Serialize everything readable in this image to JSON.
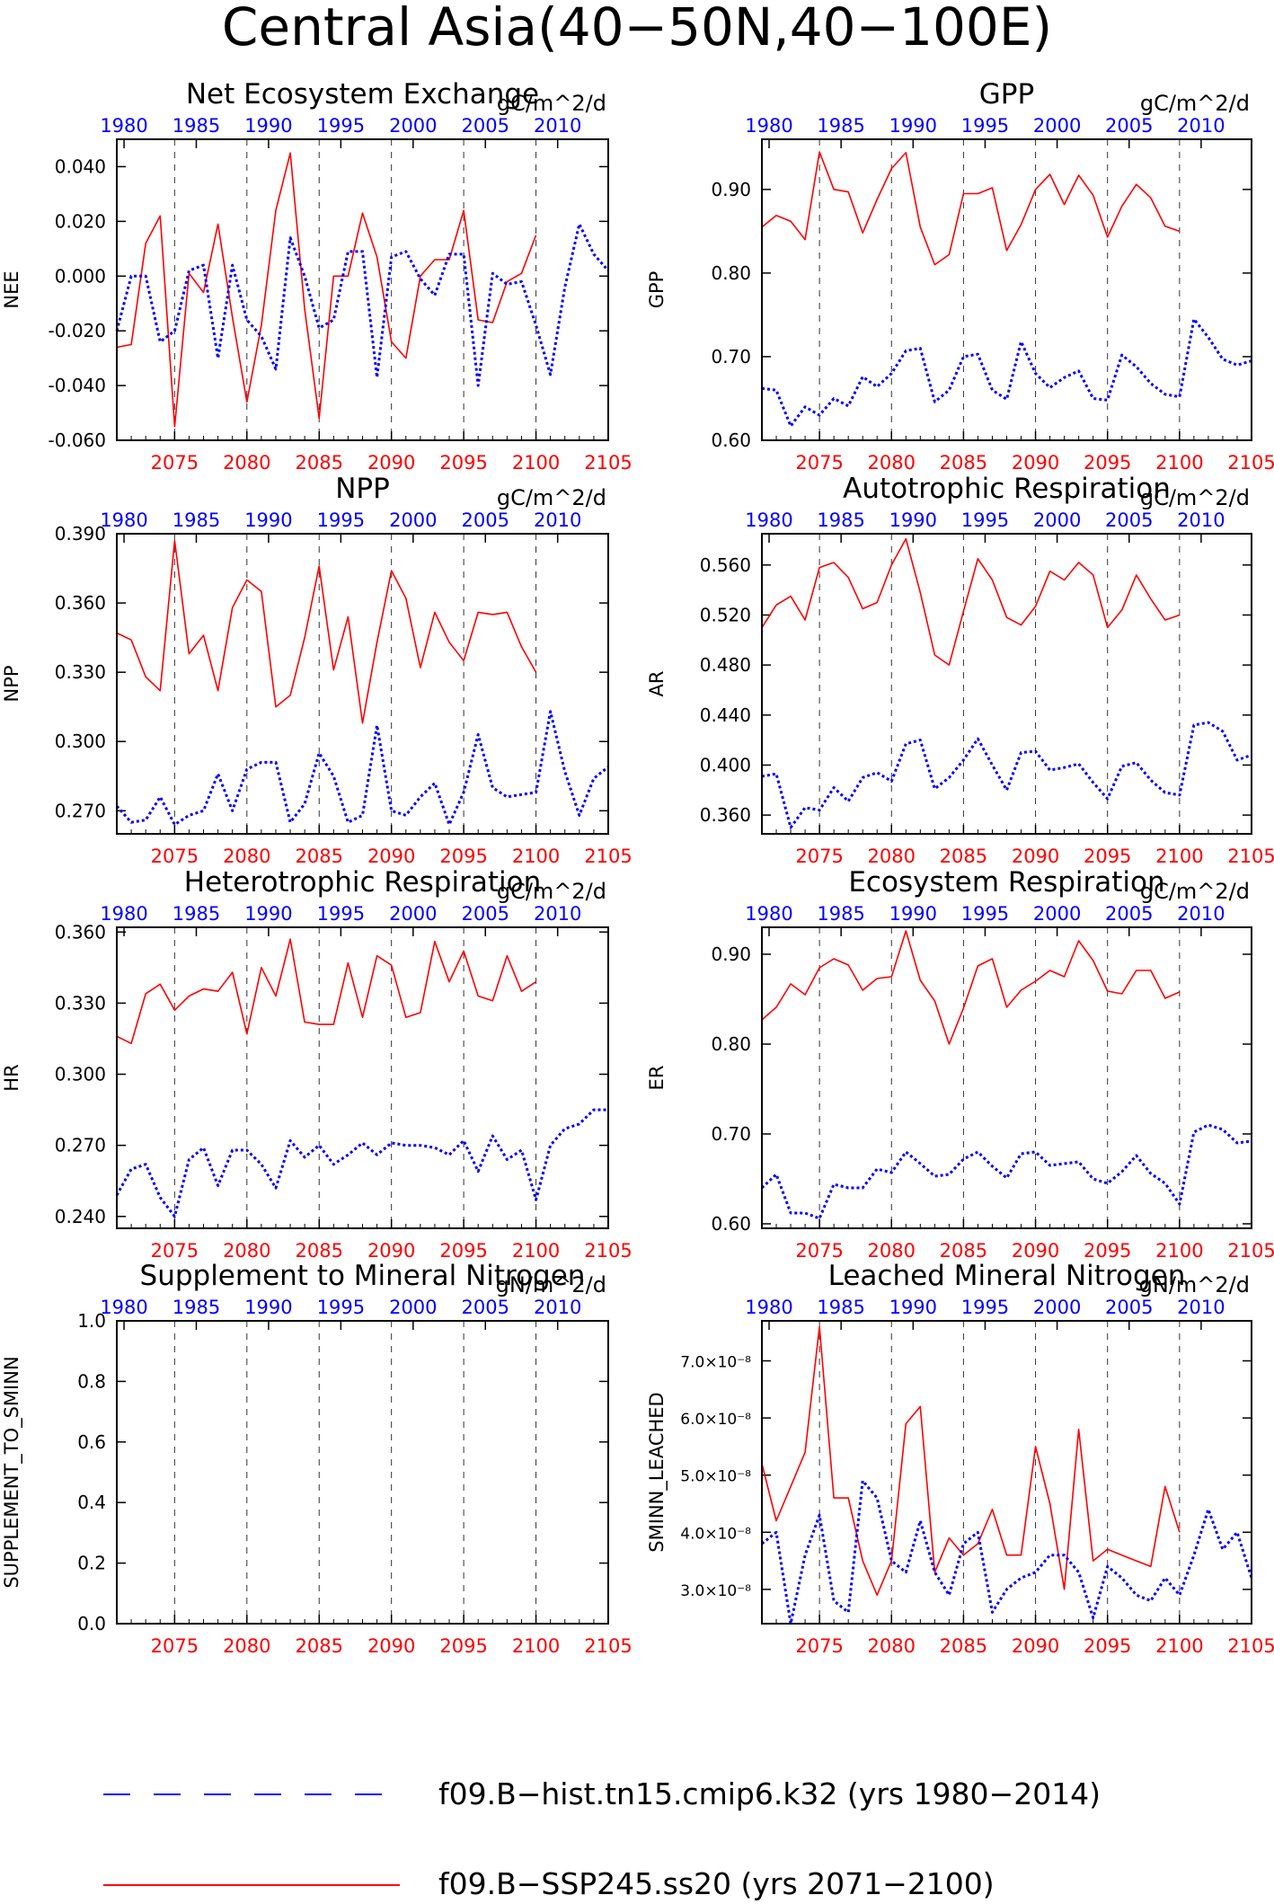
{
  "page": {
    "title": "Central Asia(40−50N,40−100E)",
    "colors": {
      "ssp": "#ff0000",
      "hist": "#0000ff",
      "frame": "#000000",
      "grid": "#000000"
    }
  },
  "legend": {
    "items": [
      {
        "label": "f09.B−hist.tn15.cmip6.k32 (yrs 1980−2014)",
        "color": "#0000ff",
        "style": "dashed"
      },
      {
        "label": "f09.B−SSP245.ss20 (yrs 2071−2100)",
        "color": "#ff0000",
        "style": "solid"
      }
    ]
  },
  "chart_data": [
    {
      "type": "line",
      "title": "Net Ecosystem Exchange",
      "units": "gC/m^2/d",
      "ylabel": "NEE",
      "ylim": [
        -0.06,
        0.05
      ],
      "yticks": [
        "-0.060",
        "-0.040",
        "-0.020",
        "0.000",
        "0.020",
        "0.040"
      ],
      "ytick_values": [
        -0.06,
        -0.04,
        -0.02,
        0.0,
        0.02,
        0.04
      ],
      "bottom_x_ticks": [
        "2075",
        "2080",
        "2085",
        "2090",
        "2095",
        "2100",
        "2105"
      ],
      "top_x_ticks": [
        "1980",
        "1985",
        "1990",
        "1995",
        "2000",
        "2005",
        "2010"
      ],
      "series": [
        {
          "name": "f09.B−SSP245.ss20",
          "x_start": 2071,
          "values": [
            -0.026,
            -0.025,
            0.012,
            0.022,
            -0.055,
            0.001,
            -0.006,
            0.019,
            -0.015,
            -0.046,
            -0.018,
            0.024,
            0.045,
            -0.012,
            -0.052,
            0.0,
            0.0,
            0.023,
            0.007,
            -0.024,
            -0.03,
            0.0,
            0.006,
            0.006,
            0.024,
            -0.016,
            -0.017,
            -0.002,
            0.001,
            0.015
          ]
        },
        {
          "name": "f09.B−hist.tn15.cmip6.k32",
          "x_start": 2071,
          "values": [
            -0.02,
            0.0,
            0.0,
            -0.024,
            -0.02,
            0.002,
            0.004,
            -0.03,
            0.004,
            -0.016,
            -0.022,
            -0.034,
            0.014,
            0.0,
            -0.019,
            -0.016,
            0.009,
            0.009,
            -0.037,
            0.007,
            0.009,
            -0.001,
            -0.007,
            0.008,
            0.008,
            -0.04,
            0.001,
            -0.003,
            -0.002,
            -0.018,
            -0.036,
            -0.004,
            0.019,
            0.008,
            0.002
          ]
        }
      ]
    },
    {
      "type": "line",
      "title": "GPP",
      "units": "gC/m^2/d",
      "ylabel": "GPP",
      "ylim": [
        0.6,
        0.96
      ],
      "yticks": [
        "0.60",
        "0.70",
        "0.80",
        "0.90"
      ],
      "ytick_values": [
        0.6,
        0.7,
        0.8,
        0.9
      ],
      "bottom_x_ticks": [
        "2075",
        "2080",
        "2085",
        "2090",
        "2095",
        "2100",
        "2105"
      ],
      "top_x_ticks": [
        "1980",
        "1985",
        "1990",
        "1995",
        "2000",
        "2005",
        "2010"
      ],
      "series": [
        {
          "name": "f09.B−SSP245.ss20",
          "x_start": 2071,
          "values": [
            0.855,
            0.869,
            0.862,
            0.84,
            0.945,
            0.9,
            0.897,
            0.848,
            0.888,
            0.925,
            0.944,
            0.855,
            0.81,
            0.822,
            0.895,
            0.895,
            0.902,
            0.827,
            0.858,
            0.9,
            0.918,
            0.882,
            0.917,
            0.893,
            0.843,
            0.88,
            0.906,
            0.89,
            0.856,
            0.85
          ]
        },
        {
          "name": "f09.B−hist.tn15.cmip6.k32",
          "x_start": 2071,
          "values": [
            0.662,
            0.66,
            0.617,
            0.64,
            0.63,
            0.65,
            0.641,
            0.676,
            0.664,
            0.68,
            0.707,
            0.71,
            0.646,
            0.66,
            0.7,
            0.703,
            0.66,
            0.649,
            0.718,
            0.68,
            0.663,
            0.675,
            0.683,
            0.65,
            0.648,
            0.702,
            0.688,
            0.668,
            0.655,
            0.652,
            0.745,
            0.723,
            0.697,
            0.69,
            0.695
          ]
        }
      ]
    },
    {
      "type": "line",
      "title": "NPP",
      "units": "gC/m^2/d",
      "ylabel": "NPP",
      "ylim": [
        0.26,
        0.39
      ],
      "yticks": [
        "0.270",
        "0.300",
        "0.330",
        "0.360",
        "0.390"
      ],
      "ytick_values": [
        0.27,
        0.3,
        0.33,
        0.36,
        0.39
      ],
      "bottom_x_ticks": [
        "2075",
        "2080",
        "2085",
        "2090",
        "2095",
        "2100",
        "2105"
      ],
      "top_x_ticks": [
        "1980",
        "1985",
        "1990",
        "1995",
        "2000",
        "2005",
        "2010"
      ],
      "series": [
        {
          "name": "f09.B−SSP245.ss20",
          "x_start": 2071,
          "values": [
            0.347,
            0.344,
            0.328,
            0.322,
            0.387,
            0.338,
            0.346,
            0.322,
            0.358,
            0.37,
            0.365,
            0.315,
            0.32,
            0.345,
            0.376,
            0.331,
            0.354,
            0.308,
            0.343,
            0.374,
            0.362,
            0.332,
            0.356,
            0.343,
            0.335,
            0.356,
            0.355,
            0.356,
            0.341,
            0.33
          ]
        },
        {
          "name": "f09.B−hist.tn15.cmip6.k32",
          "x_start": 2071,
          "values": [
            0.272,
            0.265,
            0.266,
            0.276,
            0.264,
            0.268,
            0.27,
            0.286,
            0.27,
            0.288,
            0.291,
            0.291,
            0.265,
            0.273,
            0.295,
            0.285,
            0.265,
            0.268,
            0.307,
            0.27,
            0.268,
            0.276,
            0.282,
            0.264,
            0.278,
            0.303,
            0.28,
            0.276,
            0.277,
            0.278,
            0.313,
            0.287,
            0.268,
            0.284,
            0.289
          ]
        }
      ]
    },
    {
      "type": "line",
      "title": "Autotrophic Respiration",
      "units": "gC/m^2/d",
      "ylabel": "AR",
      "ylim": [
        0.345,
        0.585
      ],
      "yticks": [
        "0.360",
        "0.400",
        "0.440",
        "0.480",
        "0.520",
        "0.560"
      ],
      "ytick_values": [
        0.36,
        0.4,
        0.44,
        0.48,
        0.52,
        0.56
      ],
      "bottom_x_ticks": [
        "2075",
        "2080",
        "2085",
        "2090",
        "2095",
        "2100",
        "2105"
      ],
      "top_x_ticks": [
        "1980",
        "1985",
        "1990",
        "1995",
        "2000",
        "2005",
        "2010"
      ],
      "series": [
        {
          "name": "f09.B−SSP245.ss20",
          "x_start": 2071,
          "values": [
            0.51,
            0.528,
            0.535,
            0.516,
            0.558,
            0.562,
            0.55,
            0.525,
            0.53,
            0.56,
            0.581,
            0.538,
            0.488,
            0.48,
            0.523,
            0.565,
            0.548,
            0.518,
            0.512,
            0.527,
            0.555,
            0.548,
            0.562,
            0.552,
            0.51,
            0.524,
            0.552,
            0.533,
            0.516,
            0.52
          ]
        },
        {
          "name": "f09.B−hist.tn15.cmip6.k32",
          "x_start": 2071,
          "values": [
            0.391,
            0.393,
            0.35,
            0.366,
            0.364,
            0.382,
            0.371,
            0.39,
            0.394,
            0.387,
            0.417,
            0.42,
            0.381,
            0.39,
            0.404,
            0.421,
            0.4,
            0.38,
            0.41,
            0.411,
            0.396,
            0.398,
            0.401,
            0.386,
            0.373,
            0.399,
            0.402,
            0.388,
            0.378,
            0.376,
            0.432,
            0.434,
            0.427,
            0.404,
            0.408
          ]
        }
      ]
    },
    {
      "type": "line",
      "title": "Heterotrophic Respiration",
      "units": "gC/m^2/d",
      "ylabel": "HR",
      "ylim": [
        0.235,
        0.362
      ],
      "yticks": [
        "0.240",
        "0.270",
        "0.300",
        "0.330",
        "0.360"
      ],
      "ytick_values": [
        0.24,
        0.27,
        0.3,
        0.33,
        0.36
      ],
      "bottom_x_ticks": [
        "2075",
        "2080",
        "2085",
        "2090",
        "2095",
        "2100",
        "2105"
      ],
      "top_x_ticks": [
        "1980",
        "1985",
        "1990",
        "1995",
        "2000",
        "2005",
        "2010"
      ],
      "series": [
        {
          "name": "f09.B−SSP245.ss20",
          "x_start": 2071,
          "values": [
            0.316,
            0.313,
            0.334,
            0.338,
            0.327,
            0.333,
            0.336,
            0.335,
            0.343,
            0.317,
            0.345,
            0.333,
            0.357,
            0.322,
            0.321,
            0.321,
            0.347,
            0.324,
            0.35,
            0.346,
            0.324,
            0.326,
            0.356,
            0.339,
            0.352,
            0.333,
            0.331,
            0.35,
            0.335,
            0.339
          ]
        },
        {
          "name": "f09.B−hist.tn15.cmip6.k32",
          "x_start": 2071,
          "values": [
            0.249,
            0.26,
            0.262,
            0.248,
            0.24,
            0.264,
            0.269,
            0.253,
            0.268,
            0.268,
            0.262,
            0.252,
            0.272,
            0.265,
            0.27,
            0.262,
            0.266,
            0.271,
            0.266,
            0.271,
            0.27,
            0.27,
            0.269,
            0.266,
            0.272,
            0.259,
            0.274,
            0.264,
            0.268,
            0.247,
            0.27,
            0.277,
            0.279,
            0.285,
            0.285
          ]
        }
      ]
    },
    {
      "type": "line",
      "title": "Ecosystem Respiration",
      "units": "gC/m^2/d",
      "ylabel": "ER",
      "ylim": [
        0.595,
        0.93
      ],
      "yticks": [
        "0.60",
        "0.70",
        "0.80",
        "0.90"
      ],
      "ytick_values": [
        0.6,
        0.7,
        0.8,
        0.9
      ],
      "bottom_x_ticks": [
        "2075",
        "2080",
        "2085",
        "2090",
        "2095",
        "2100",
        "2105"
      ],
      "top_x_ticks": [
        "1980",
        "1985",
        "1990",
        "1995",
        "2000",
        "2005",
        "2010"
      ],
      "series": [
        {
          "name": "f09.B−SSP245.ss20",
          "x_start": 2071,
          "values": [
            0.827,
            0.841,
            0.867,
            0.855,
            0.885,
            0.895,
            0.888,
            0.86,
            0.873,
            0.875,
            0.926,
            0.871,
            0.848,
            0.8,
            0.84,
            0.887,
            0.895,
            0.841,
            0.86,
            0.87,
            0.882,
            0.875,
            0.915,
            0.893,
            0.859,
            0.856,
            0.882,
            0.882,
            0.851,
            0.858
          ]
        },
        {
          "name": "f09.B−hist.tn15.cmip6.k32",
          "x_start": 2071,
          "values": [
            0.64,
            0.655,
            0.612,
            0.612,
            0.606,
            0.644,
            0.64,
            0.64,
            0.661,
            0.657,
            0.68,
            0.667,
            0.653,
            0.655,
            0.672,
            0.68,
            0.664,
            0.651,
            0.678,
            0.68,
            0.665,
            0.667,
            0.669,
            0.65,
            0.645,
            0.658,
            0.676,
            0.656,
            0.645,
            0.622,
            0.702,
            0.71,
            0.705,
            0.69,
            0.692
          ]
        }
      ]
    },
    {
      "type": "line",
      "title": "Supplement to Mineral Nitrogen",
      "units": "gN/m^2/d",
      "ylabel": "SUPPLEMENT_TO_SMINN",
      "ylim": [
        0.0,
        1.0
      ],
      "yticks": [
        "0.0",
        "0.2",
        "0.4",
        "0.6",
        "0.8",
        "1.0"
      ],
      "ytick_values": [
        0.0,
        0.2,
        0.4,
        0.6,
        0.8,
        1.0
      ],
      "bottom_x_ticks": [
        "2075",
        "2080",
        "2085",
        "2090",
        "2095",
        "2100",
        "2105"
      ],
      "top_x_ticks": [
        "1980",
        "1985",
        "1990",
        "1995",
        "2000",
        "2005",
        "2010"
      ],
      "series": []
    },
    {
      "type": "line",
      "title": "Leached Mineral Nitrogen",
      "units": "gN/m^2/d",
      "ylabel": "SMINN_LEACHED",
      "ylim": [
        2.4e-08,
        7.7e-08
      ],
      "yticks": [
        "3.0×10⁻⁸",
        "4.0×10⁻⁸",
        "5.0×10⁻⁸",
        "6.0×10⁻⁸",
        "7.0×10⁻⁸"
      ],
      "ytick_values": [
        3e-08,
        4e-08,
        5e-08,
        6e-08,
        7e-08
      ],
      "bottom_x_ticks": [
        "2075",
        "2080",
        "2085",
        "2090",
        "2095",
        "2100",
        "2105"
      ],
      "top_x_ticks": [
        "1980",
        "1985",
        "1990",
        "1995",
        "2000",
        "2005",
        "2010"
      ],
      "series": [
        {
          "name": "f09.B−SSP245.ss20",
          "x_start": 2071,
          "values": [
            5.2e-08,
            4.2e-08,
            4.8e-08,
            5.4e-08,
            7.6e-08,
            4.6e-08,
            4.6e-08,
            3.5e-08,
            2.9e-08,
            3.5e-08,
            5.9e-08,
            6.2e-08,
            3.3e-08,
            3.9e-08,
            3.6e-08,
            3.8e-08,
            4.4e-08,
            3.6e-08,
            3.6e-08,
            5.5e-08,
            4.5e-08,
            3e-08,
            5.8e-08,
            3.5e-08,
            3.7e-08,
            3.6e-08,
            3.5e-08,
            3.4e-08,
            4.8e-08,
            4e-08
          ]
        },
        {
          "name": "f09.B−hist.tn15.cmip6.k32",
          "x_start": 2071,
          "values": [
            3.8e-08,
            4e-08,
            2.4e-08,
            3.6e-08,
            4.3e-08,
            2.8e-08,
            2.6e-08,
            4.9e-08,
            4.6e-08,
            3.5e-08,
            3.3e-08,
            4.2e-08,
            3.3e-08,
            2.9e-08,
            3.8e-08,
            4e-08,
            2.6e-08,
            3e-08,
            3.2e-08,
            3.3e-08,
            3.6e-08,
            3.6e-08,
            3.3e-08,
            2.5e-08,
            3.4e-08,
            3.2e-08,
            2.9e-08,
            2.8e-08,
            3.2e-08,
            2.9e-08,
            3.6e-08,
            4.4e-08,
            3.7e-08,
            4e-08,
            3.2e-08
          ]
        }
      ]
    }
  ]
}
